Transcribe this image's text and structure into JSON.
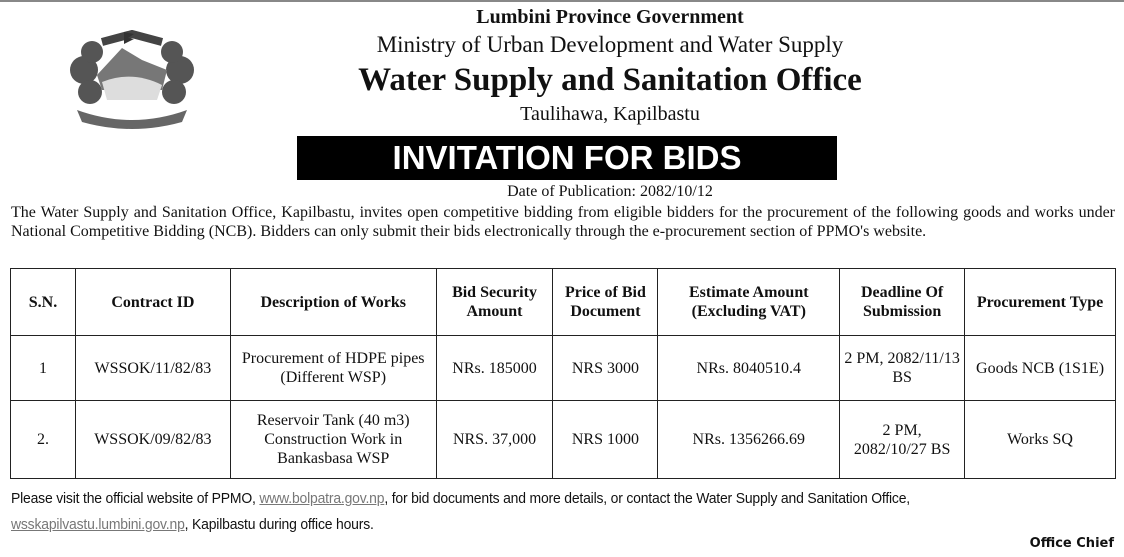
{
  "header": {
    "province": "Lumbini Province Government",
    "ministry": "Ministry of Urban Development and Water Supply",
    "office": "Water Supply and Sanitation Office",
    "location": "Taulihawa, Kapilbastu",
    "banner": "INVITATION FOR BIDS",
    "date": "Date of Publication: 2082/10/12"
  },
  "intro": "The Water Supply and Sanitation Office, Kapilbastu, invites open competitive bidding from eligible bidders for the procurement of the following goods and works under National Competitive Bidding (NCB). Bidders can only submit their bids electronically through the e-procurement section of PPMO's website.",
  "table": {
    "headers": [
      "S.N.",
      "Contract ID",
      "Description of Works",
      "Bid Security Amount",
      "Price of Bid Document",
      "Estimate Amount (Excluding VAT)",
      "Deadline Of Submission",
      "Procurement Type"
    ],
    "rows": [
      [
        "1",
        "WSSOK/11/82/83",
        "Procurement of HDPE pipes (Different WSP)",
        "NRs. 185000",
        "NRS 3000",
        "NRs. 8040510.4",
        "2 PM, 2082/11/13 BS",
        "Goods NCB (1S1E)"
      ],
      [
        "2.",
        "WSSOK/09/82/83",
        "Reservoir Tank (40 m3) Construction Work in Bankasbasa WSP",
        "NRS. 37,000",
        "NRS 1000",
        "NRs. 1356266.69",
        "2 PM, 2082/10/27 BS",
        "Works SQ"
      ]
    ]
  },
  "footer": {
    "text1": "Please visit the official website of PPMO, ",
    "link1": "www.bolpatra.gov.np",
    "text2": ", for bid documents and more details, or contact the Water Supply and Sanitation Office, ",
    "link2": "wsskapilvastu.lumbini.gov.np",
    "text3": ", Kapilbastu during office hours.",
    "signature": "Office Chief"
  }
}
